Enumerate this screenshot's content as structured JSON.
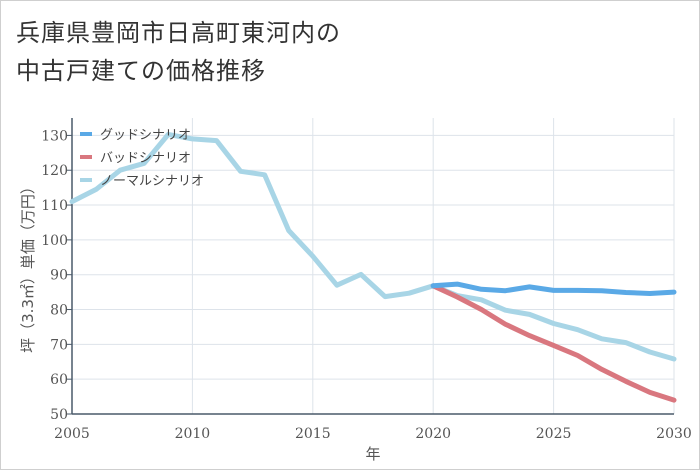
{
  "title": {
    "line1": "兵庫県豊岡市日高町東河内の",
    "line2": "中古戸建ての価格推移"
  },
  "chart_data": {
    "type": "line",
    "title": "兵庫県豊岡市日高町東河内の中古戸建ての価格推移",
    "xlabel": "年",
    "ylabel": "坪（3.3㎡）単価（万円）",
    "xlim": [
      2005,
      2030
    ],
    "ylim": [
      50,
      135
    ],
    "xticks": [
      2005,
      2010,
      2015,
      2020,
      2025,
      2030
    ],
    "yticks": [
      50,
      60,
      70,
      80,
      90,
      100,
      110,
      120,
      130
    ],
    "grid": true,
    "legend_position": "top-left",
    "series": [
      {
        "name": "グッドシナリオ",
        "color": "#5aa9e6",
        "x": [
          2020,
          2021,
          2022,
          2023,
          2024,
          2025,
          2026,
          2027,
          2028,
          2029,
          2030
        ],
        "values": [
          86.8,
          87.3,
          85.8,
          85.4,
          86.5,
          85.5,
          85.5,
          85.4,
          84.9,
          84.6,
          85.0
        ]
      },
      {
        "name": "バッドシナリオ",
        "color": "#d9777f",
        "x": [
          2020,
          2021,
          2022,
          2023,
          2024,
          2025,
          2026,
          2027,
          2028,
          2029,
          2030
        ],
        "values": [
          86.8,
          83.6,
          80.0,
          75.8,
          72.5,
          69.7,
          66.8,
          62.8,
          59.4,
          56.2,
          54.0
        ]
      },
      {
        "name": "ノーマルシナリオ",
        "color": "#a8d5e6",
        "x": [
          2005,
          2006,
          2007,
          2008,
          2009,
          2010,
          2011,
          2012,
          2013,
          2014,
          2015,
          2016,
          2017,
          2018,
          2019,
          2020,
          2021,
          2022,
          2023,
          2024,
          2025,
          2026,
          2027,
          2028,
          2029,
          2030
        ],
        "values": [
          111.0,
          114.5,
          120.0,
          122.0,
          130.3,
          129.0,
          128.5,
          119.7,
          118.7,
          102.7,
          95.3,
          87.0,
          90.1,
          83.7,
          84.7,
          86.8,
          84.0,
          82.8,
          79.8,
          78.6,
          76.0,
          74.2,
          71.6,
          70.5,
          67.8,
          65.8
        ]
      }
    ]
  }
}
